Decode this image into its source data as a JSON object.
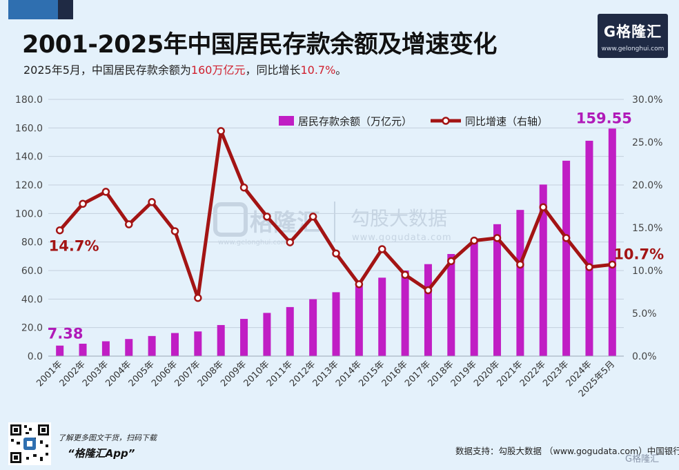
{
  "title": "2001-2025年中国居民存款余额及增速变化",
  "subtitle": {
    "part1": "2025年5月，中国居民存款余额为",
    "highlight1": "160万亿元",
    "part2": "，同比增长",
    "highlight2": "10.7%",
    "part3": "。"
  },
  "logo": {
    "text": "G格隆汇",
    "url": "www.gelonghui.com"
  },
  "watermark": {
    "brand": "G格隆汇",
    "brand_url": "www.gelonghui.com",
    "partner": "勾股大数据",
    "partner_url": "www.gogudata.com"
  },
  "footer": {
    "qr_caption": "了解更多图文干货，扫码下载",
    "app_name": "“格隆汇App”",
    "source": "数据支持：勾股大数据 （www.gogudata.com）中国银行",
    "mark": "G格隆汇"
  },
  "colors": {
    "bar": "#c01ec4",
    "line": "#a31414",
    "marker_fill": "#ffffff",
    "highlight": "#d0202e",
    "label_bar": "#b01ab8",
    "label_line": "#a31414"
  },
  "chart_data": {
    "type": "bar+line",
    "categories": [
      "2001年",
      "2002年",
      "2003年",
      "2004年",
      "2005年",
      "2006年",
      "2007年",
      "2008年",
      "2009年",
      "2010年",
      "2011年",
      "2012年",
      "2013年",
      "2014年",
      "2015年",
      "2016年",
      "2017年",
      "2018年",
      "2019年",
      "2020年",
      "2021年",
      "2022年",
      "2023年",
      "2024年",
      "2025年5月"
    ],
    "series": [
      {
        "name": "居民存款余额（万亿元）",
        "type": "bar",
        "axis": "left",
        "values": [
          7.38,
          8.7,
          10.4,
          12.0,
          14.1,
          16.2,
          17.3,
          21.8,
          26.1,
          30.3,
          34.4,
          39.9,
          44.8,
          49.0,
          55.0,
          60.0,
          64.5,
          71.6,
          81.3,
          92.5,
          102.5,
          120.3,
          137.0,
          151.0,
          159.55
        ]
      },
      {
        "name": "同比增速（右轴）",
        "type": "line",
        "axis": "right",
        "values": [
          14.7,
          17.8,
          19.2,
          15.4,
          18.0,
          14.6,
          6.8,
          26.3,
          19.7,
          16.3,
          13.3,
          16.3,
          12.0,
          8.4,
          12.5,
          9.5,
          7.7,
          11.1,
          13.5,
          13.8,
          10.7,
          17.4,
          13.8,
          10.4,
          10.7
        ]
      }
    ],
    "left_axis": {
      "ylim": [
        0,
        180
      ],
      "ticks": [
        "0.0",
        "20.0",
        "40.0",
        "60.0",
        "80.0",
        "100.0",
        "120.0",
        "140.0",
        "160.0",
        "180.0"
      ]
    },
    "right_axis": {
      "ylim": [
        0,
        30
      ],
      "ticks": [
        "0.0%",
        "5.0%",
        "10.0%",
        "15.0%",
        "20.0%",
        "25.0%",
        "30.0%"
      ]
    },
    "grid": "horizontal",
    "legend_position": "top-center",
    "annotations": [
      {
        "text": "7.38",
        "series": 0,
        "index": 0
      },
      {
        "text": "159.55",
        "series": 0,
        "index": 24
      },
      {
        "text": "14.7%",
        "series": 1,
        "index": 0
      },
      {
        "text": "10.7%",
        "series": 1,
        "index": 24
      }
    ]
  }
}
